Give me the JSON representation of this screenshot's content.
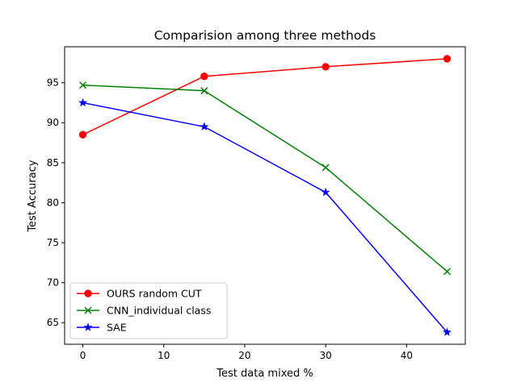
{
  "chart_data": {
    "type": "line",
    "title": "Comparision among three methods",
    "xlabel": "Test data mixed %",
    "ylabel": "Test Accuracy",
    "x": [
      0,
      15,
      30,
      45
    ],
    "xlim": [
      -2.25,
      47.25
    ],
    "ylim": [
      62.3,
      99.5
    ],
    "xticks": [
      0,
      10,
      20,
      30,
      40
    ],
    "yticks": [
      65,
      70,
      75,
      80,
      85,
      90,
      95
    ],
    "grid": false,
    "legend_position": "lower-left",
    "series": [
      {
        "name": "OURS random CUT",
        "color": "#ff0000",
        "marker": "circle",
        "values": [
          88.5,
          95.8,
          97.0,
          98.0
        ]
      },
      {
        "name": "CNN_individual class",
        "color": "#008000",
        "marker": "x",
        "values": [
          94.7,
          94.0,
          84.4,
          71.4
        ]
      },
      {
        "name": "SAE",
        "color": "#0000ff",
        "marker": "star",
        "values": [
          92.5,
          89.5,
          81.3,
          63.8
        ]
      }
    ]
  }
}
